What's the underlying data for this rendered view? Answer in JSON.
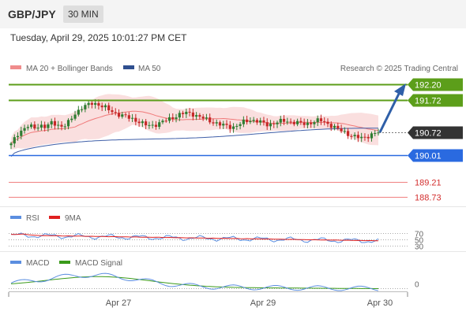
{
  "header": {
    "symbol": "GBP/JPY",
    "timeframe": "30 MIN"
  },
  "datetime": "Tuesday, April 29, 2025 10:01:27 PM CET",
  "legend": {
    "bollinger": "MA 20 + Bollinger Bands",
    "ma50": "MA 50",
    "credit": "Research © 2025 Trading Central"
  },
  "colors": {
    "green": "#5c9e1a",
    "blue": "#2a6ae0",
    "red": "#e04848",
    "pivot_bg": "#333333",
    "arrow": "#2f5fa8",
    "bb": "#f4b8b8",
    "candle_up": "#2f7d32",
    "candle_down": "#c62828"
  },
  "chart_data": [
    {
      "type": "candlestick",
      "x_labels": [
        "Apr 27",
        "Apr 29",
        "Apr 30"
      ],
      "current_price": 190.72,
      "levels": [
        {
          "label": "192.20",
          "value": 192.2,
          "kind": "target"
        },
        {
          "label": "191.72",
          "value": 191.72,
          "kind": "resistance"
        },
        {
          "label": "190.72",
          "value": 190.72,
          "kind": "pivot"
        },
        {
          "label": "190.01",
          "value": 190.01,
          "kind": "support"
        },
        {
          "label": "189.21",
          "value": 189.21,
          "kind": "support2"
        },
        {
          "label": "188.73",
          "value": 188.73,
          "kind": "support3"
        }
      ],
      "close_path": [
        190.35,
        190.65,
        190.82,
        190.92,
        190.85,
        190.95,
        190.88,
        191.02,
        190.95,
        190.9,
        191.05,
        191.3,
        191.48,
        191.55,
        191.62,
        191.58,
        191.5,
        191.38,
        191.3,
        191.25,
        191.18,
        191.12,
        191.05,
        190.95,
        190.92,
        190.98,
        191.05,
        191.12,
        191.2,
        191.28,
        191.32,
        191.3,
        191.22,
        191.15,
        191.08,
        191.02,
        190.95,
        190.92,
        190.88,
        190.95,
        191.05,
        191.1,
        191.08,
        191.02,
        190.96,
        191.0,
        191.05,
        191.08,
        191.04,
        191.02,
        190.98,
        191.0,
        191.05,
        191.1,
        191.02,
        190.92,
        190.82,
        190.75,
        190.65,
        190.58,
        190.55,
        190.6,
        190.66,
        190.72
      ],
      "ma50_start": 189.98,
      "ma50_end": 190.83
    },
    {
      "type": "line",
      "name_series": [
        "RSI",
        "9MA"
      ],
      "levels": [
        70,
        50,
        30
      ],
      "colors": {
        "RSI": "#5b8ee0",
        "9MA": "#e02020"
      }
    },
    {
      "type": "line",
      "name_series": [
        "MACD",
        "MACD Signal"
      ],
      "zero_label": "0",
      "colors": {
        "MACD": "#5b8ee0",
        "MACD Signal": "#3a9a1a"
      }
    }
  ]
}
